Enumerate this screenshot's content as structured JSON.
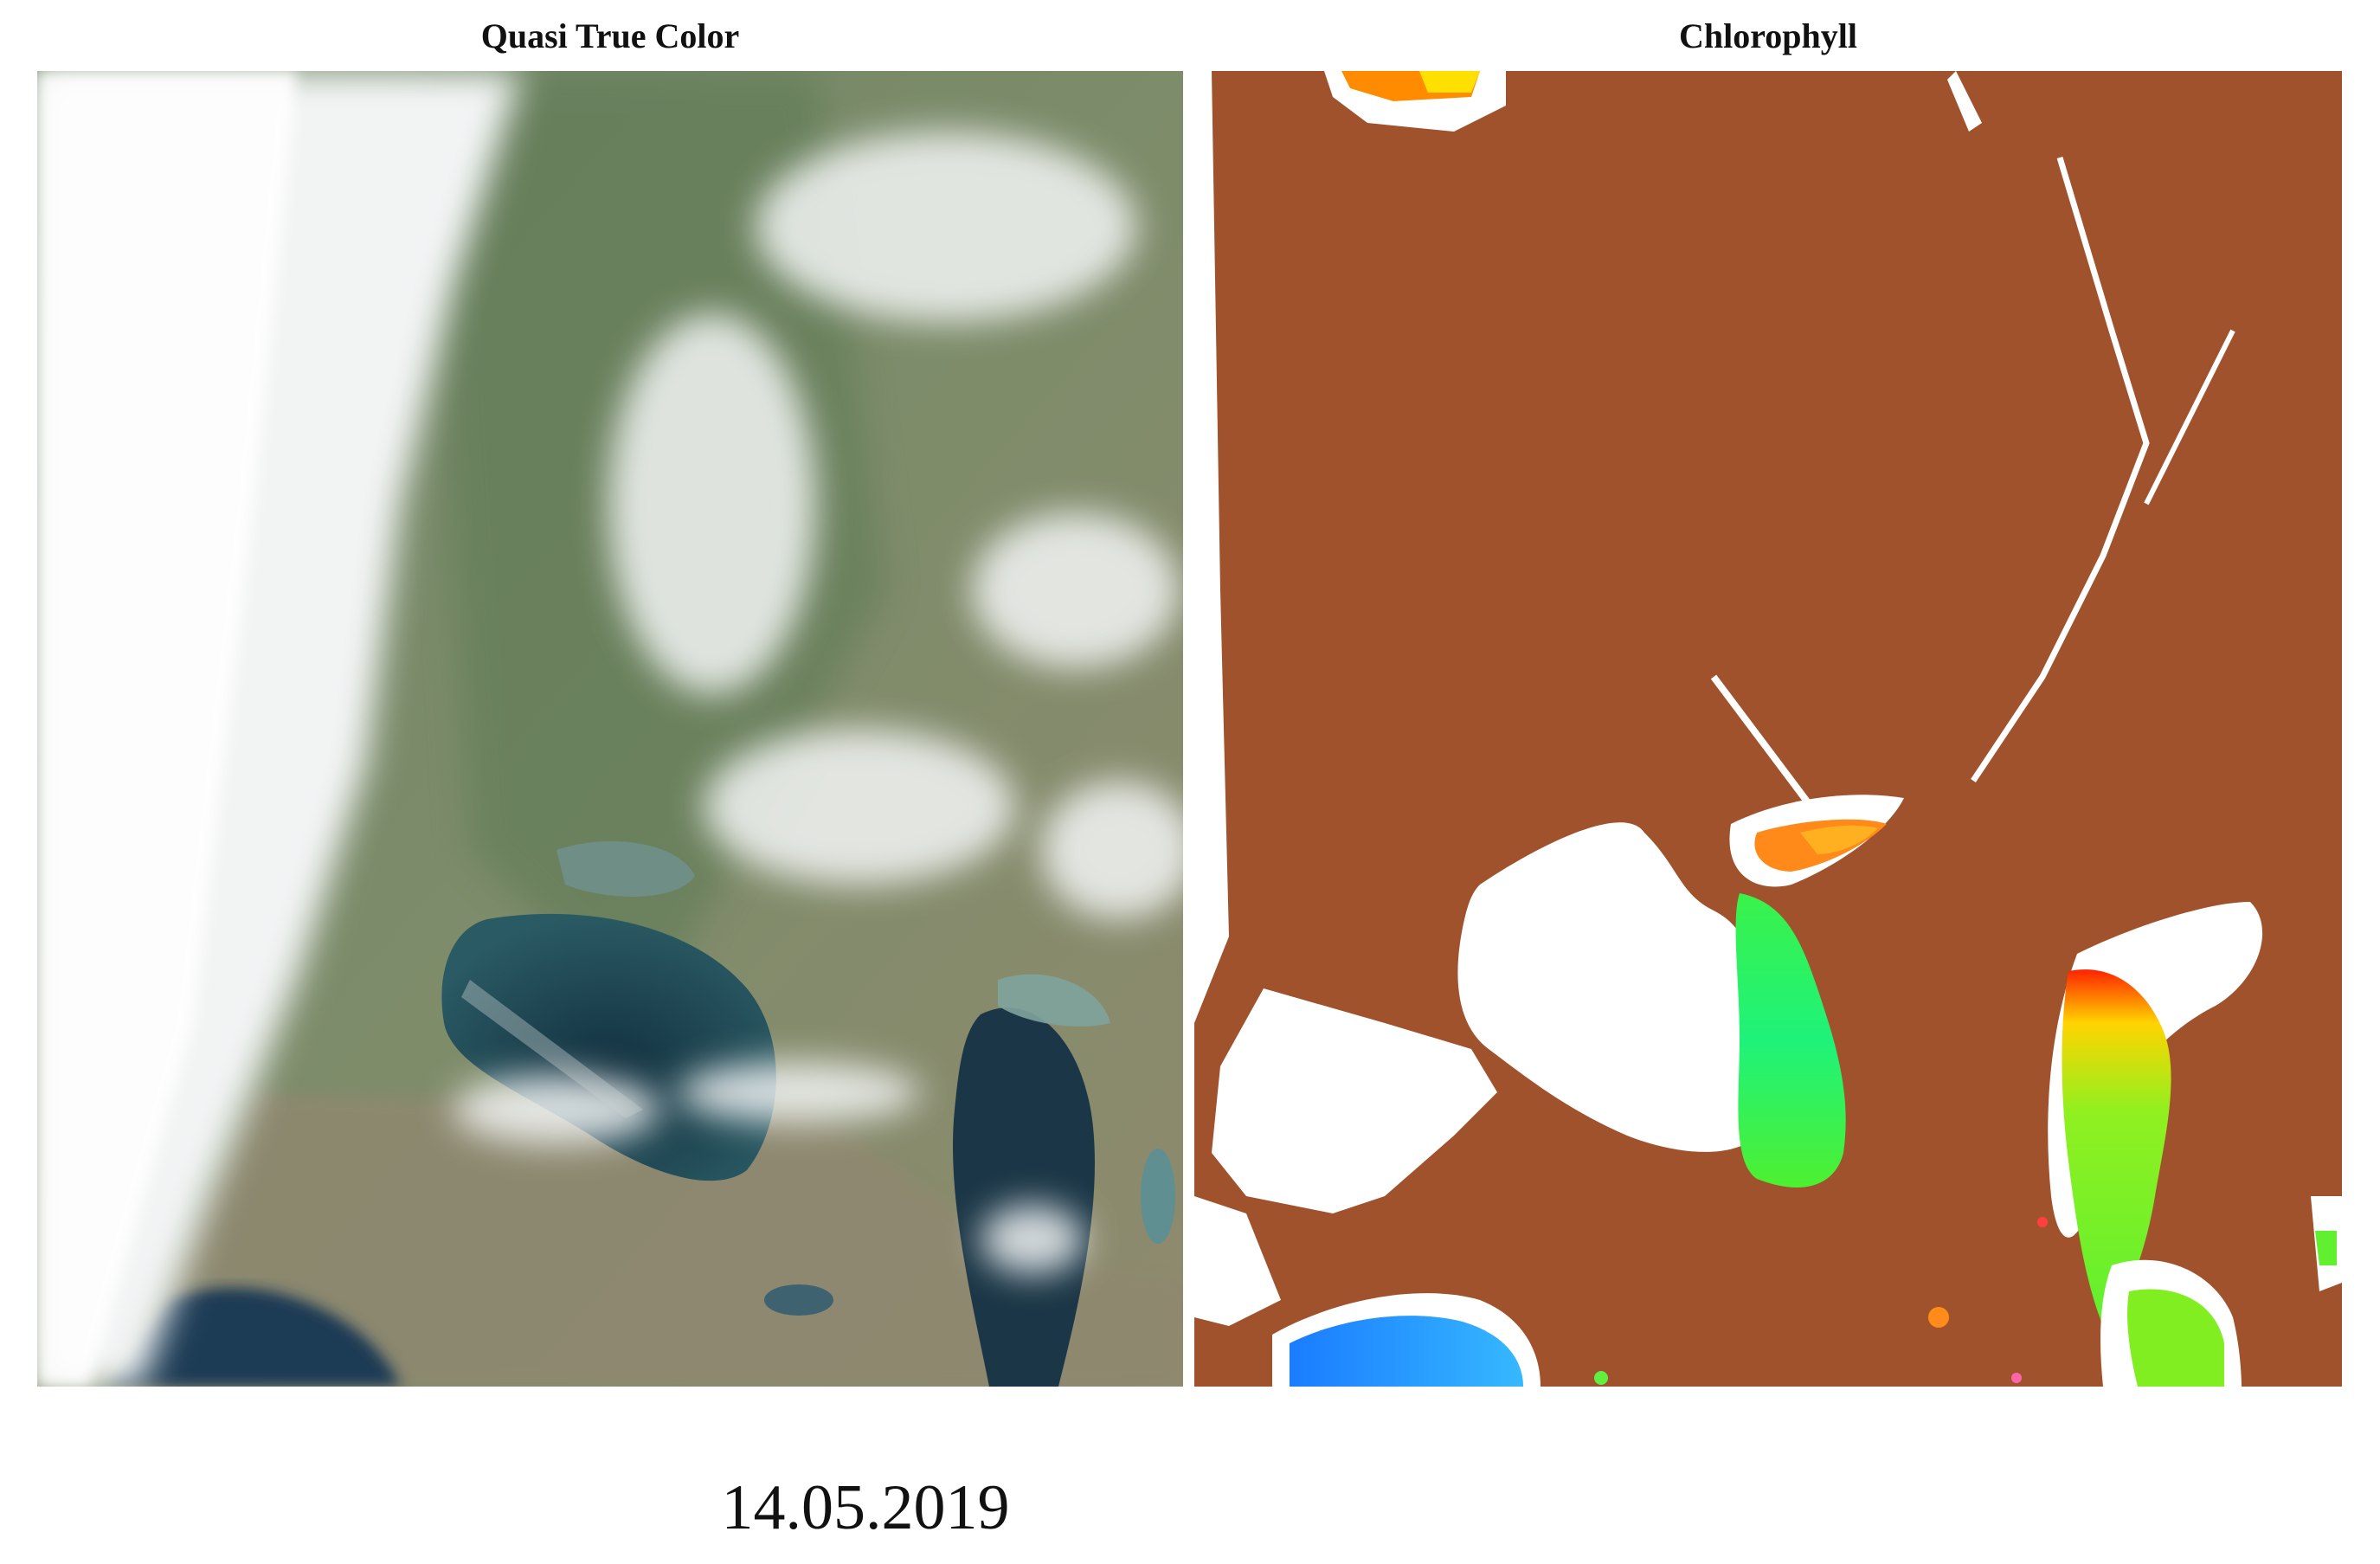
{
  "panels": {
    "left": {
      "title": "Quasi True Color"
    },
    "right": {
      "title": "Chlorophyll"
    }
  },
  "date": "14.05.2019",
  "colors": {
    "land_mask": "#a0522d",
    "no_data": "#ffffff",
    "sea_dark": "#1e3a4c",
    "vegetation": "#5e7a52",
    "cloud": "#f4f6f6",
    "chl_low": "#1aa0ff",
    "chl_mid": "#22ff66",
    "chl_high": "#ff2200"
  }
}
